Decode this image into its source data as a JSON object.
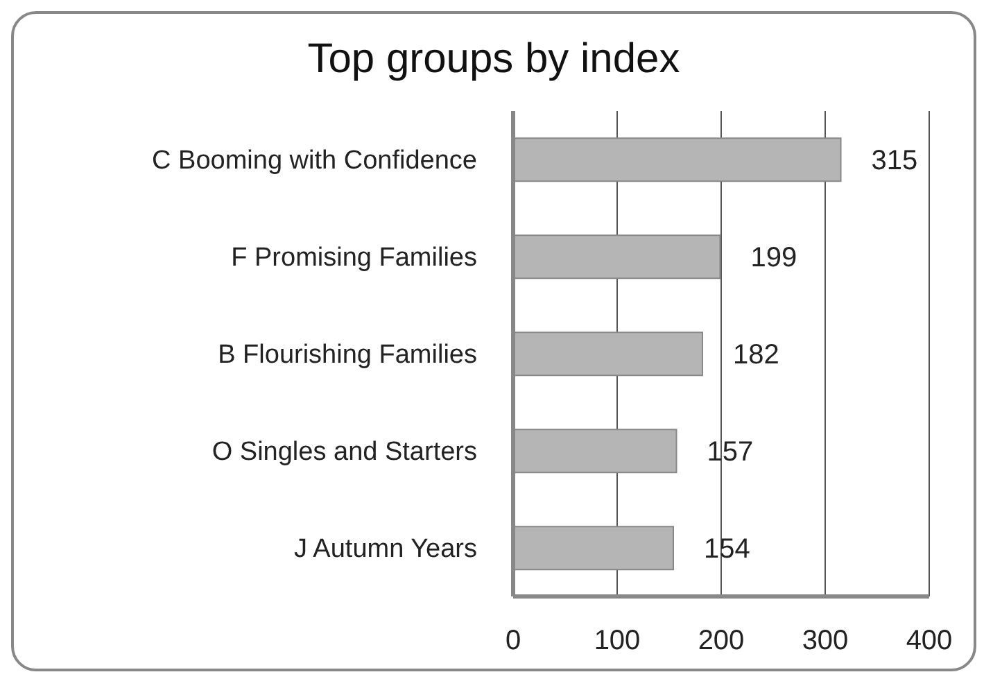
{
  "chart_data": {
    "type": "bar",
    "orientation": "horizontal",
    "title": "Top groups by index",
    "categories": [
      "C  Booming with Confidence",
      "F  Promising Families",
      "B  Flourishing Families",
      "O  Singles and Starters",
      "J  Autumn Years"
    ],
    "values": [
      315,
      199,
      182,
      157,
      154
    ],
    "color": "#b5b5b5",
    "xlim": [
      0,
      400
    ],
    "xticks": [
      0,
      100,
      200,
      300,
      400
    ],
    "grid": "x",
    "data_labels": true,
    "legend": false
  }
}
